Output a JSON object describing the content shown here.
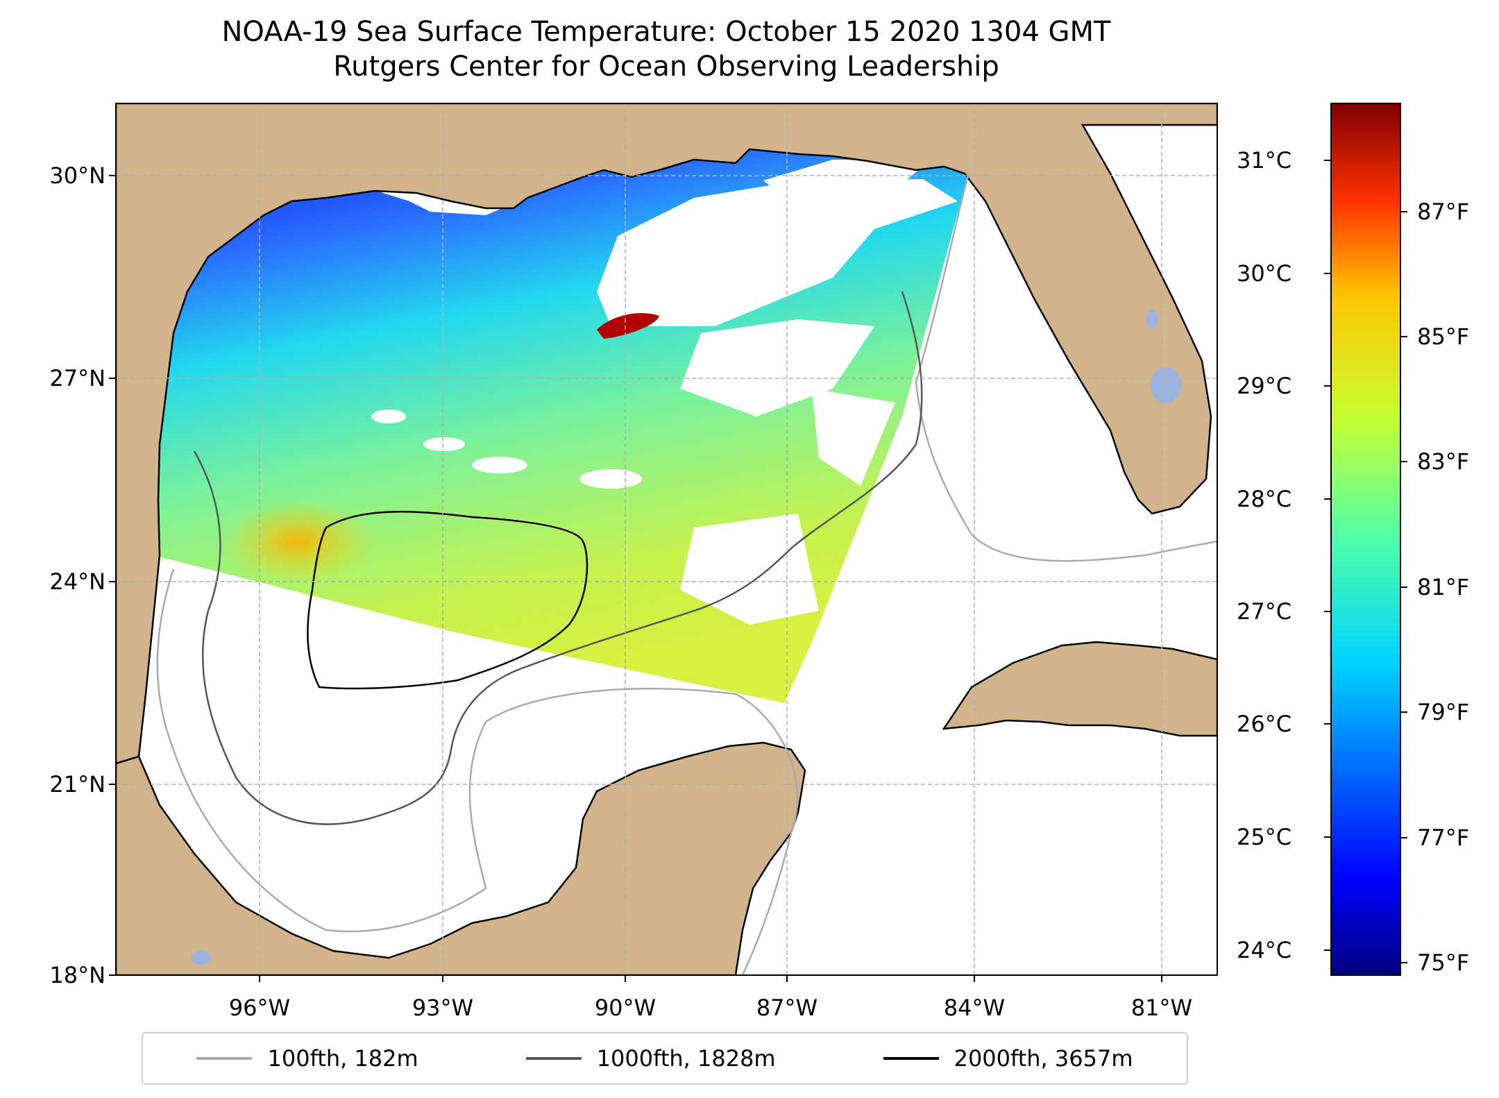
{
  "title": "NOAA-19 Sea Surface Temperature: October 15 2020 1304 GMT",
  "subtitle": "Rutgers Center for Ocean Observing Leadership",
  "colors": {
    "land": "#d2b48c",
    "lakes": "#9ab3e0",
    "contour_100": "#aaaaaa",
    "contour_1000": "#555555",
    "contour_2000": "#000000",
    "grid": "#b0b0b0"
  },
  "map": {
    "lon_range": [
      -98,
      -80.2
    ],
    "lat_range": [
      18,
      31
    ],
    "lat_ticks": [
      "30°N",
      "27°N",
      "24°N",
      "21°N",
      "18°N"
    ],
    "lon_ticks": [
      "96°W",
      "93°W",
      "90°W",
      "87°W",
      "84°W",
      "81°W"
    ]
  },
  "colorbar": {
    "colormap": "jet",
    "celsius_labels": [
      "31°C",
      "30°C",
      "29°C",
      "28°C",
      "27°C",
      "26°C",
      "25°C",
      "24°C"
    ],
    "fahrenheit_labels": [
      "87°F",
      "85°F",
      "83°F",
      "81°F",
      "79°F",
      "77°F",
      "75°F"
    ],
    "celsius_range": [
      23.8,
      31.5
    ]
  },
  "legend": {
    "items": [
      {
        "label": "100fth, 182m",
        "color": "#aaaaaa"
      },
      {
        "label": "1000fth, 1828m",
        "color": "#555555"
      },
      {
        "label": "2000fth, 3657m",
        "color": "#000000"
      }
    ]
  }
}
